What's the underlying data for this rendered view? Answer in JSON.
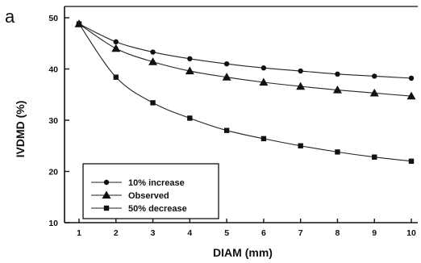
{
  "panel_label": "a",
  "chart_data": {
    "type": "line",
    "title": "",
    "xlabel": "DIAM (mm)",
    "ylabel": "IVDMD (%)",
    "x": [
      1,
      2,
      3,
      4,
      5,
      6,
      7,
      8,
      9,
      10
    ],
    "xlim": [
      1,
      10
    ],
    "ylim": [
      10,
      50
    ],
    "xticks": [
      "1",
      "2",
      "3",
      "4",
      "5",
      "6",
      "7",
      "8",
      "9",
      "10"
    ],
    "yticks": [
      "10",
      "20",
      "30",
      "40",
      "50"
    ],
    "grid": false,
    "legend_position": "bottom-left",
    "series": [
      {
        "name": "10% increase",
        "marker": "circle",
        "values": [
          48.8,
          45.3,
          43.3,
          42.0,
          41.0,
          40.2,
          39.6,
          39.0,
          38.6,
          38.2
        ]
      },
      {
        "name": "Observed",
        "marker": "triangle",
        "values": [
          48.8,
          44.0,
          41.4,
          39.6,
          38.4,
          37.4,
          36.6,
          35.9,
          35.3,
          34.7
        ]
      },
      {
        "name": "50% decrease",
        "marker": "square",
        "values": [
          48.8,
          38.4,
          33.4,
          30.4,
          28.0,
          26.4,
          25.0,
          23.8,
          22.8,
          22.0
        ]
      }
    ]
  }
}
